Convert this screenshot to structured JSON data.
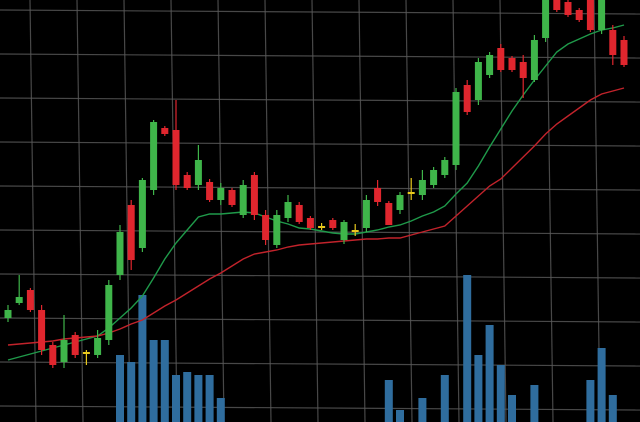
{
  "chart_data": {
    "type": "candlestick",
    "ylim": [
      0,
      422
    ],
    "up_color": "#3fb54a",
    "down_color": "#e0262e",
    "flat_color": "#e8c81c",
    "volume_color": "#2f6d9e",
    "ma_fast_color": "#1f9a4a",
    "ma_slow_color": "#c2232b",
    "background": "#000000",
    "grid_color": "#5a5a5a",
    "open": [
      104,
      119,
      132,
      112,
      77,
      60,
      87,
      70,
      67,
      82,
      147,
      217,
      174,
      232,
      294,
      292,
      247,
      237,
      240,
      222,
      232,
      207,
      247,
      207,
      177,
      204,
      217,
      204,
      196,
      202,
      182,
      192,
      194,
      234,
      219,
      212,
      230,
      227,
      237,
      247,
      257,
      337,
      322,
      347,
      374,
      364,
      360,
      342,
      384,
      428,
      420,
      412,
      428,
      392,
      392,
      382
    ],
    "high": [
      117,
      147,
      134,
      117,
      80,
      107,
      90,
      72,
      92,
      142,
      197,
      222,
      244,
      302,
      296,
      322,
      250,
      277,
      243,
      239,
      234,
      242,
      250,
      212,
      212,
      227,
      220,
      206,
      199,
      204,
      202,
      198,
      227,
      242,
      221,
      230,
      244,
      252,
      255,
      265,
      334,
      342,
      364,
      370,
      378,
      366,
      367,
      387,
      424,
      432,
      426,
      414,
      432,
      430,
      397,
      386
    ],
    "low": [
      100,
      117,
      110,
      67,
      54,
      54,
      64,
      57,
      64,
      77,
      142,
      152,
      170,
      227,
      286,
      232,
      232,
      232,
      220,
      217,
      215,
      204,
      202,
      177,
      174,
      200,
      198,
      192,
      192,
      192,
      178,
      186,
      190,
      216,
      197,
      208,
      222,
      222,
      234,
      244,
      252,
      307,
      317,
      344,
      350,
      350,
      324,
      340,
      380,
      410,
      405,
      400,
      390,
      388,
      357,
      355
    ],
    "close": [
      112,
      125,
      112,
      72,
      57,
      82,
      67,
      70,
      84,
      137,
      190,
      162,
      242,
      300,
      288,
      237,
      234,
      262,
      222,
      234,
      217,
      237,
      207,
      182,
      207,
      220,
      200,
      194,
      196,
      194,
      200,
      192,
      222,
      220,
      197,
      227,
      230,
      242,
      252,
      262,
      330,
      310,
      360,
      367,
      352,
      352,
      344,
      382,
      422,
      412,
      407,
      402,
      392,
      426,
      367,
      357
    ],
    "volume": [
      null,
      null,
      null,
      null,
      null,
      null,
      null,
      null,
      null,
      null,
      67,
      60,
      127,
      82,
      82,
      47,
      50,
      47,
      47,
      24,
      null,
      null,
      null,
      null,
      null,
      null,
      null,
      null,
      null,
      null,
      null,
      null,
      null,
      null,
      42,
      12,
      null,
      24,
      null,
      47,
      null,
      147,
      67,
      97,
      57,
      27,
      null,
      37,
      null,
      null,
      null,
      null,
      42,
      74,
      27,
      null
    ],
    "ma_fast": [
      62,
      65,
      68,
      71,
      74,
      77,
      80,
      83,
      86,
      94,
      104,
      114,
      126,
      144,
      163,
      179,
      192,
      205,
      208,
      208,
      209,
      210,
      209,
      205,
      201,
      198,
      194,
      193,
      191,
      189,
      188,
      188,
      190,
      192,
      195,
      197,
      201,
      206,
      210,
      216,
      228,
      239,
      256,
      275,
      293,
      311,
      327,
      342,
      356,
      370,
      378,
      383,
      388,
      392,
      394,
      397
    ],
    "ma_slow": [
      77,
      78,
      79,
      80,
      81,
      83,
      84,
      85,
      86,
      89,
      93,
      98,
      102,
      109,
      116,
      122,
      129,
      136,
      143,
      149,
      156,
      163,
      168,
      170,
      172,
      175,
      177,
      178,
      179,
      180,
      181,
      182,
      183,
      183,
      184,
      184,
      187,
      190,
      193,
      196,
      206,
      216,
      226,
      236,
      243,
      254,
      265,
      276,
      288,
      298,
      306,
      314,
      322,
      328,
      331,
      334
    ]
  }
}
